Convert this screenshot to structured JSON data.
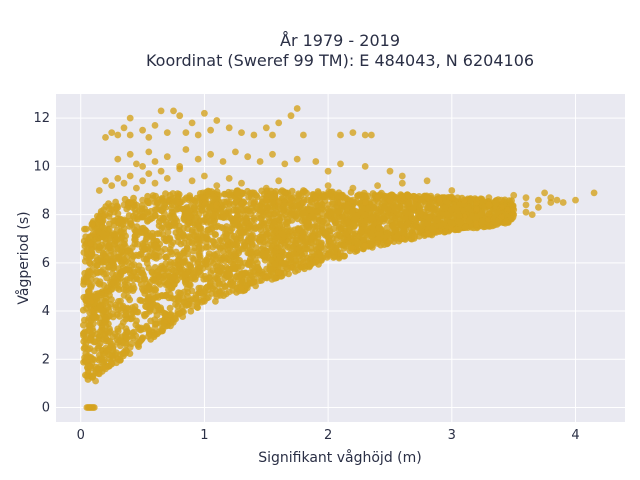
{
  "chart_data": {
    "type": "scatter",
    "title_lines": [
      "År 1979 - 2019",
      "Koordinat (Sweref 99 TM): E 484043, N 6204106"
    ],
    "xlabel": "Signifikant våghöjd (m)",
    "ylabel": "Vågperiod (s)",
    "xlim": [
      -0.2,
      4.4
    ],
    "ylim": [
      -0.6,
      13.0
    ],
    "x_ticks": [
      0,
      1,
      2,
      3,
      4
    ],
    "x_tick_labels": [
      "0",
      "1",
      "2",
      "3",
      "4"
    ],
    "y_ticks": [
      0,
      2,
      4,
      6,
      8,
      10,
      12
    ],
    "y_tick_labels": [
      "0",
      "2",
      "4",
      "6",
      "8",
      "10",
      "12"
    ],
    "grid": true,
    "marker_color": "#D4A31E",
    "plot_background": "#E9E9F1",
    "points": [
      [
        0.05,
        0
      ],
      [
        0.06,
        0
      ],
      [
        0.07,
        0
      ],
      [
        0.08,
        0
      ],
      [
        0.09,
        0
      ],
      [
        0.1,
        0
      ],
      [
        0.11,
        0
      ],
      [
        0.05,
        1.3
      ],
      [
        0.06,
        1.5
      ],
      [
        0.08,
        1.7
      ],
      [
        0.07,
        2.0
      ],
      [
        0.06,
        2.4
      ],
      [
        0.08,
        2.8
      ],
      [
        0.07,
        3.2
      ],
      [
        0.06,
        3.6
      ],
      [
        0.09,
        4.0
      ],
      [
        0.08,
        4.4
      ],
      [
        0.07,
        4.8
      ],
      [
        0.06,
        5.2
      ],
      [
        0.08,
        5.6
      ],
      [
        0.07,
        6.0
      ],
      [
        0.09,
        6.4
      ],
      [
        0.08,
        6.8
      ],
      [
        0.1,
        7.2
      ],
      [
        0.09,
        7.6
      ],
      [
        0.12,
        1.1
      ],
      [
        0.15,
        1.4
      ],
      [
        0.2,
        1.6
      ],
      [
        0.25,
        1.8
      ],
      [
        0.3,
        2.0
      ],
      [
        0.35,
        2.3
      ],
      [
        0.4,
        2.5
      ],
      [
        0.5,
        2.9
      ],
      [
        0.6,
        3.3
      ],
      [
        0.7,
        3.6
      ],
      [
        0.8,
        3.9
      ],
      [
        0.9,
        4.2
      ],
      [
        1.0,
        4.4
      ],
      [
        1.1,
        4.6
      ],
      [
        1.2,
        4.8
      ],
      [
        1.3,
        5.0
      ],
      [
        1.4,
        5.2
      ],
      [
        1.5,
        5.4
      ],
      [
        1.6,
        5.6
      ],
      [
        1.7,
        5.8
      ],
      [
        1.8,
        6.0
      ],
      [
        1.9,
        6.1
      ],
      [
        2.0,
        6.3
      ],
      [
        2.1,
        6.4
      ],
      [
        2.2,
        6.6
      ],
      [
        2.3,
        6.7
      ],
      [
        2.4,
        6.8
      ],
      [
        2.5,
        6.9
      ],
      [
        2.6,
        7.0
      ],
      [
        2.7,
        7.1
      ],
      [
        2.8,
        7.2
      ],
      [
        2.9,
        7.3
      ],
      [
        3.0,
        7.4
      ],
      [
        0.15,
        7.8
      ],
      [
        0.2,
        8.0
      ],
      [
        0.25,
        8.2
      ],
      [
        0.3,
        8.3
      ],
      [
        0.35,
        8.4
      ],
      [
        0.4,
        8.5
      ],
      [
        0.5,
        8.6
      ],
      [
        0.6,
        8.5
      ],
      [
        0.7,
        8.6
      ],
      [
        0.8,
        8.5
      ],
      [
        0.9,
        8.6
      ],
      [
        1.0,
        8.5
      ],
      [
        1.1,
        8.4
      ],
      [
        1.2,
        8.5
      ],
      [
        1.3,
        8.4
      ],
      [
        1.4,
        8.5
      ],
      [
        1.5,
        8.6
      ],
      [
        1.6,
        8.5
      ],
      [
        1.7,
        8.6
      ],
      [
        1.8,
        8.5
      ],
      [
        1.9,
        8.6
      ],
      [
        2.0,
        8.4
      ],
      [
        2.1,
        8.5
      ],
      [
        2.2,
        8.6
      ],
      [
        2.3,
        8.5
      ],
      [
        2.4,
        8.7
      ],
      [
        2.5,
        8.6
      ],
      [
        2.6,
        8.7
      ],
      [
        2.7,
        8.6
      ],
      [
        2.8,
        8.7
      ],
      [
        2.9,
        8.6
      ],
      [
        3.0,
        8.7
      ],
      [
        3.1,
        8.6
      ],
      [
        3.2,
        8.5
      ],
      [
        3.3,
        8.4
      ],
      [
        3.4,
        8.3
      ],
      [
        3.5,
        8.2
      ],
      [
        3.6,
        8.1
      ],
      [
        3.2,
        7.6
      ],
      [
        3.3,
        7.8
      ],
      [
        3.4,
        7.9
      ],
      [
        3.5,
        8.0
      ],
      [
        3.6,
        8.4
      ],
      [
        3.7,
        8.6
      ],
      [
        3.8,
        8.5
      ],
      [
        0.15,
        9.0
      ],
      [
        0.2,
        9.4
      ],
      [
        0.25,
        9.2
      ],
      [
        0.3,
        9.5
      ],
      [
        0.35,
        9.3
      ],
      [
        0.4,
        9.6
      ],
      [
        0.45,
        9.1
      ],
      [
        0.5,
        9.4
      ],
      [
        0.55,
        9.7
      ],
      [
        0.6,
        9.3
      ],
      [
        0.65,
        9.8
      ],
      [
        0.7,
        9.5
      ],
      [
        0.8,
        9.9
      ],
      [
        0.9,
        9.4
      ],
      [
        1.0,
        9.6
      ],
      [
        1.1,
        9.2
      ],
      [
        1.2,
        9.5
      ],
      [
        1.3,
        9.3
      ],
      [
        1.5,
        9.1
      ],
      [
        1.6,
        9.4
      ],
      [
        1.8,
        9.0
      ],
      [
        2.0,
        9.2
      ],
      [
        2.2,
        9.1
      ],
      [
        2.4,
        9.2
      ],
      [
        2.6,
        9.3
      ],
      [
        2.8,
        9.4
      ],
      [
        3.0,
        9.0
      ],
      [
        0.3,
        10.3
      ],
      [
        0.4,
        10.5
      ],
      [
        0.45,
        10.1
      ],
      [
        0.5,
        10.0
      ],
      [
        0.55,
        10.6
      ],
      [
        0.6,
        10.2
      ],
      [
        0.7,
        10.4
      ],
      [
        0.8,
        10.0
      ],
      [
        0.85,
        10.7
      ],
      [
        0.95,
        10.3
      ],
      [
        1.05,
        10.5
      ],
      [
        1.15,
        10.2
      ],
      [
        1.25,
        10.6
      ],
      [
        1.35,
        10.4
      ],
      [
        1.45,
        10.2
      ],
      [
        1.55,
        10.5
      ],
      [
        1.65,
        10.1
      ],
      [
        1.75,
        10.3
      ],
      [
        1.9,
        10.2
      ],
      [
        2.0,
        9.8
      ],
      [
        2.1,
        10.1
      ],
      [
        2.3,
        10.0
      ],
      [
        2.5,
        9.8
      ],
      [
        2.6,
        9.6
      ],
      [
        0.2,
        11.2
      ],
      [
        0.25,
        11.4
      ],
      [
        0.3,
        11.3
      ],
      [
        0.35,
        11.6
      ],
      [
        0.4,
        11.3
      ],
      [
        0.5,
        11.5
      ],
      [
        0.55,
        11.2
      ],
      [
        0.6,
        11.7
      ],
      [
        0.7,
        11.4
      ],
      [
        0.75,
        12.3
      ],
      [
        0.8,
        12.1
      ],
      [
        0.85,
        11.4
      ],
      [
        0.9,
        11.8
      ],
      [
        0.95,
        11.3
      ],
      [
        1.0,
        12.2
      ],
      [
        1.05,
        11.5
      ],
      [
        1.1,
        11.9
      ],
      [
        1.2,
        11.6
      ],
      [
        1.3,
        11.4
      ],
      [
        1.4,
        11.3
      ],
      [
        1.5,
        11.6
      ],
      [
        1.55,
        11.3
      ],
      [
        1.6,
        11.8
      ],
      [
        1.7,
        12.1
      ],
      [
        1.75,
        12.4
      ],
      [
        1.8,
        11.3
      ],
      [
        2.1,
        11.3
      ],
      [
        2.2,
        11.4
      ],
      [
        2.3,
        11.3
      ],
      [
        2.35,
        11.3
      ],
      [
        0.4,
        12.0
      ],
      [
        0.65,
        12.3
      ],
      [
        3.1,
        7.9
      ],
      [
        3.2,
        8.2
      ],
      [
        3.3,
        8.7
      ],
      [
        3.4,
        8.6
      ],
      [
        3.5,
        8.8
      ],
      [
        3.6,
        8.7
      ],
      [
        3.7,
        8.3
      ],
      [
        3.75,
        8.9
      ],
      [
        3.8,
        8.7
      ],
      [
        3.85,
        8.6
      ],
      [
        4.0,
        8.6
      ],
      [
        4.15,
        8.9
      ],
      [
        3.3,
        8.0
      ],
      [
        3.45,
        8.2
      ],
      [
        3.65,
        8.0
      ],
      [
        3.9,
        8.5
      ]
    ],
    "bands": [
      {
        "x0": 0.02,
        "x1": 0.25,
        "y_lower": [
          1.0,
          1.7
        ],
        "y_upper": [
          7.4,
          8.6
        ],
        "density": 1.0
      },
      {
        "x0": 0.25,
        "x1": 0.9,
        "y_lower": [
          1.7,
          4.0
        ],
        "y_upper": [
          8.6,
          9.0
        ],
        "density": 0.9
      },
      {
        "x0": 0.9,
        "x1": 1.6,
        "y_lower": [
          4.0,
          5.4
        ],
        "y_upper": [
          9.0,
          9.0
        ],
        "density": 0.8
      },
      {
        "x0": 1.6,
        "x1": 2.4,
        "y_lower": [
          5.4,
          6.7
        ],
        "y_upper": [
          9.0,
          8.9
        ],
        "density": 0.7
      },
      {
        "x0": 2.4,
        "x1": 3.1,
        "y_lower": [
          6.7,
          7.4
        ],
        "y_upper": [
          8.9,
          8.7
        ],
        "density": 0.55
      },
      {
        "x0": 3.1,
        "x1": 3.5,
        "y_lower": [
          7.3,
          7.7
        ],
        "y_upper": [
          8.7,
          8.6
        ],
        "density": 0.3
      }
    ]
  }
}
